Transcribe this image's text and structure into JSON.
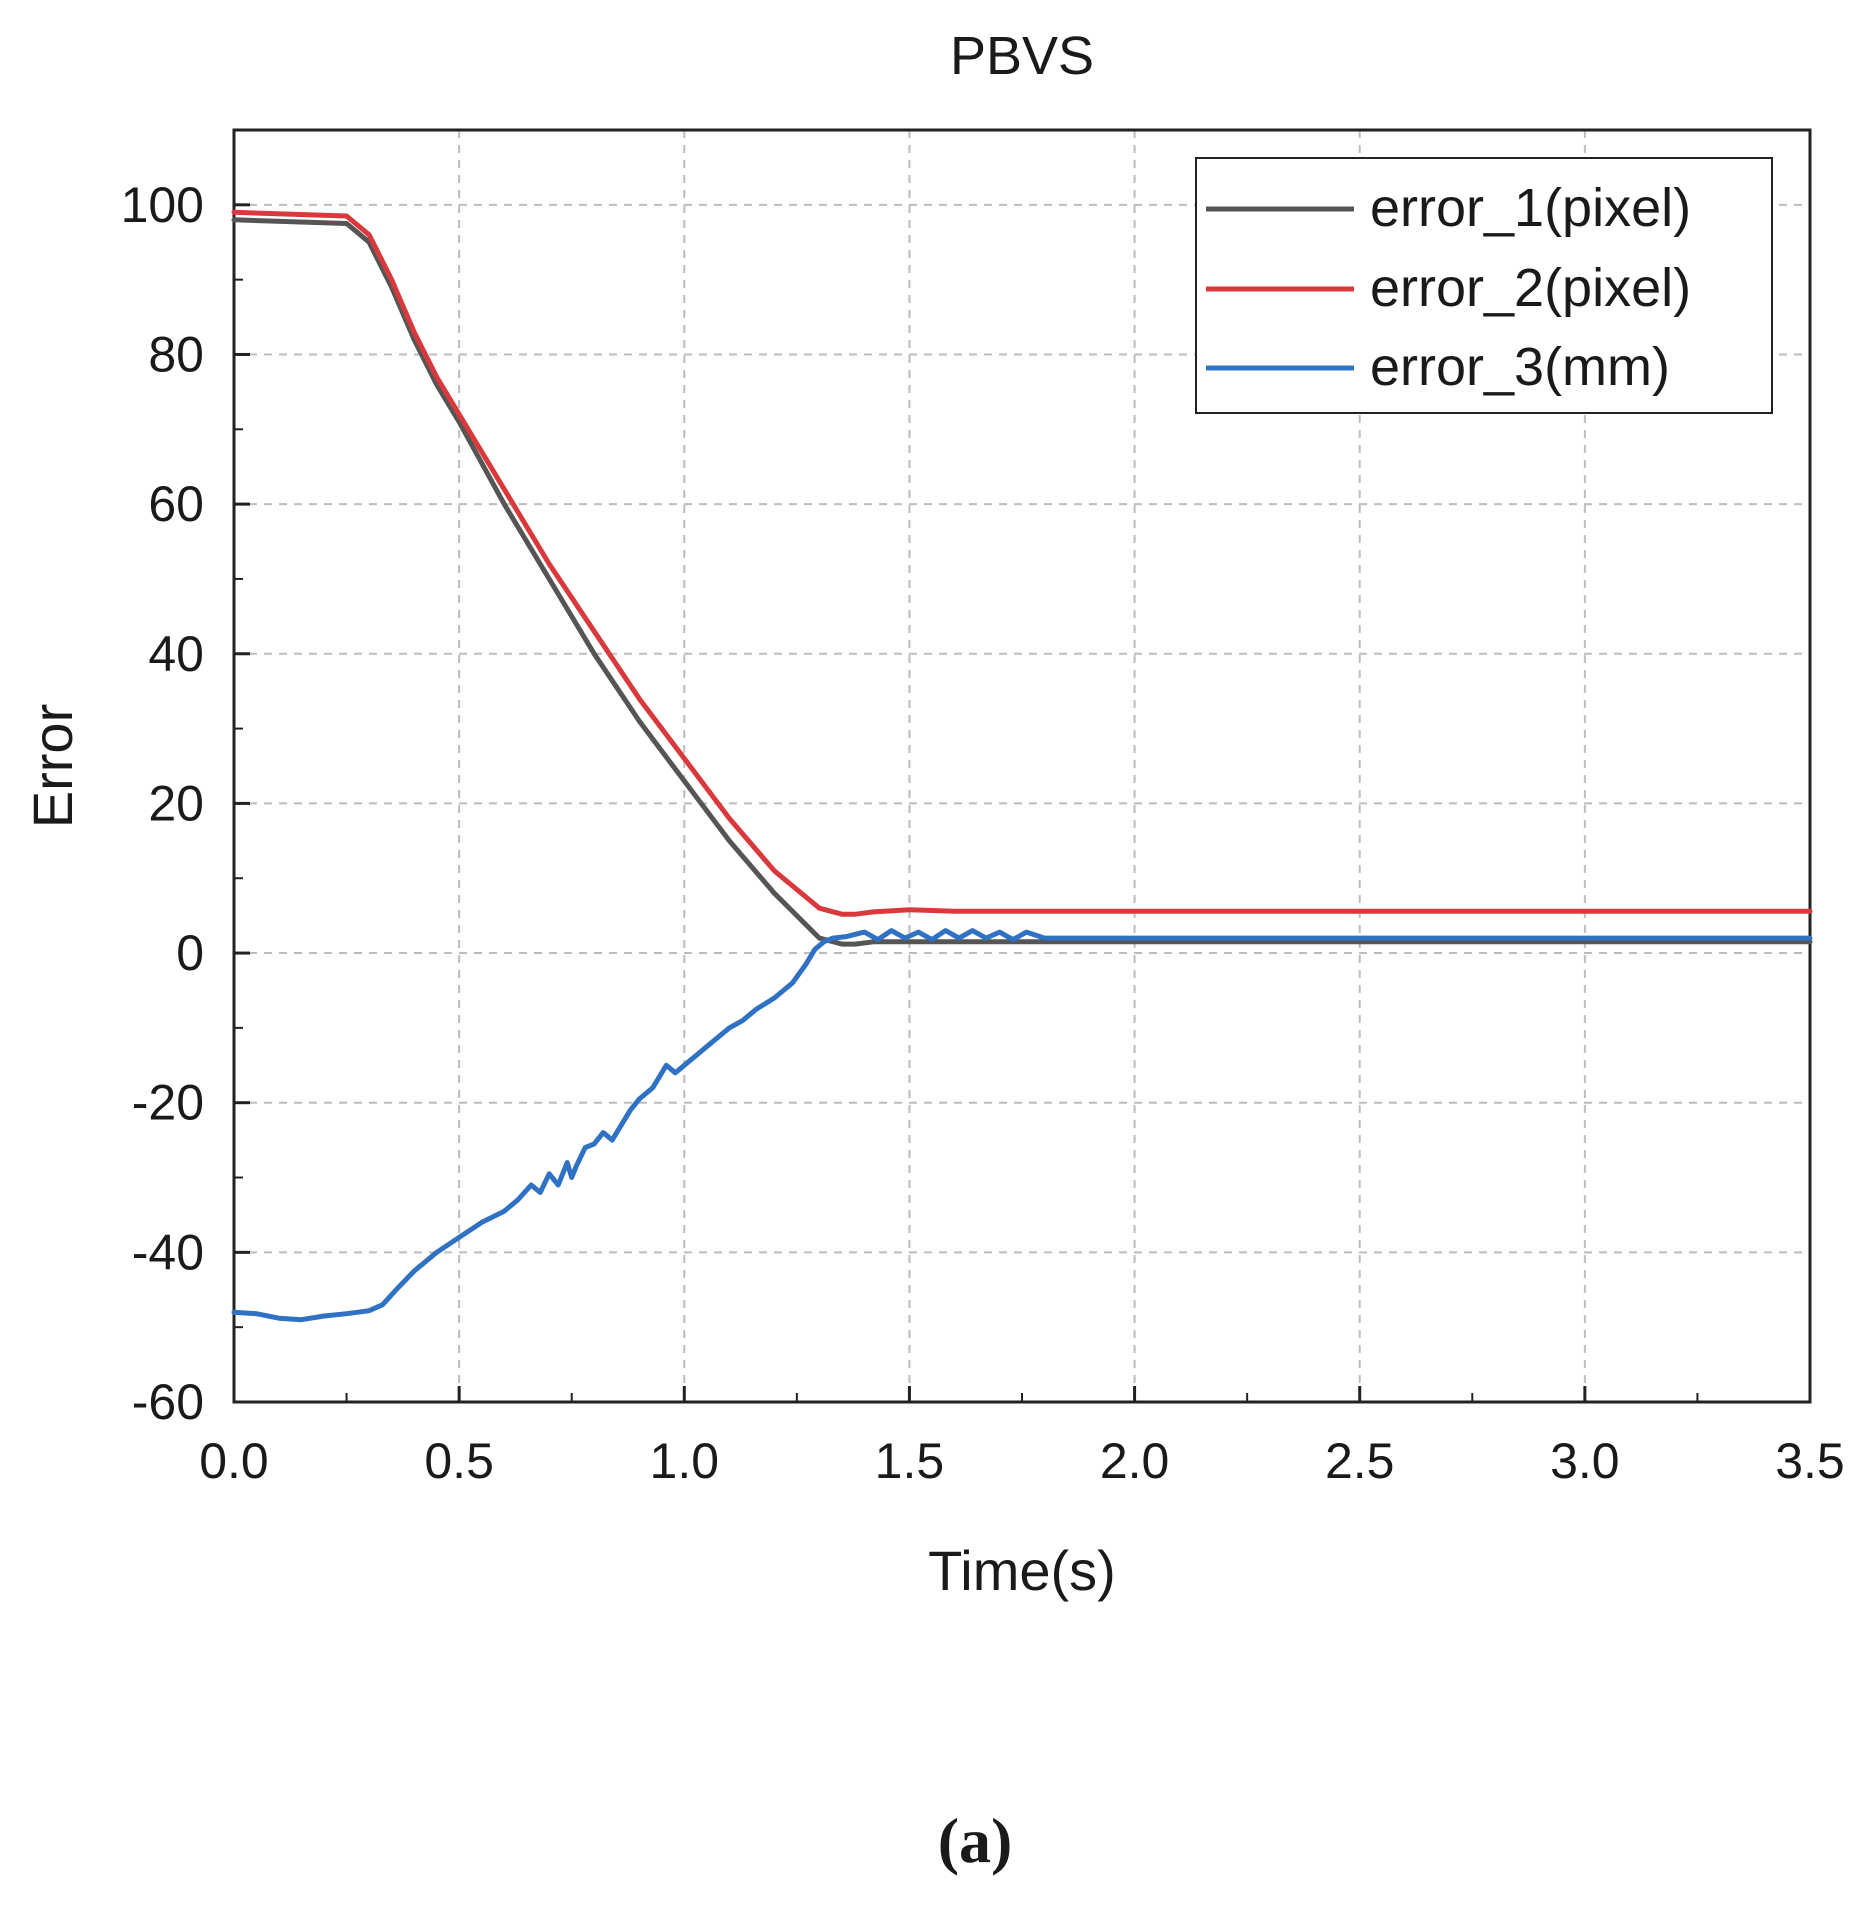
{
  "chart_data": {
    "type": "line",
    "title": "PBVS",
    "xlabel": "Time(s)",
    "ylabel": "Error",
    "xlim": [
      0,
      3.5
    ],
    "ylim": [
      -60,
      110
    ],
    "xticks": [
      "0.0",
      "0.5",
      "1.0",
      "1.5",
      "2.0",
      "2.5",
      "3.0",
      "3.5"
    ],
    "yticks": [
      "-60",
      "-40",
      "-20",
      "0",
      "20",
      "40",
      "60",
      "80",
      "100"
    ],
    "grid": true,
    "legend_position": "top-right",
    "caption": "(a)",
    "series": [
      {
        "name": "error_1(pixel)",
        "color": "#555555",
        "x": [
          0,
          0.25,
          0.3,
          0.35,
          0.4,
          0.45,
          0.5,
          0.6,
          0.7,
          0.8,
          0.9,
          1.0,
          1.1,
          1.2,
          1.3,
          1.35,
          1.38,
          1.42,
          1.5,
          2.0,
          2.5,
          3.0,
          3.5
        ],
        "y": [
          98,
          97.5,
          95,
          89,
          82,
          76,
          71,
          60,
          50,
          40,
          31,
          23,
          15,
          8,
          2,
          1.2,
          1.2,
          1.5,
          1.5,
          1.5,
          1.5,
          1.5,
          1.5
        ]
      },
      {
        "name": "error_2(pixel)",
        "color": "#d9393c",
        "x": [
          0,
          0.25,
          0.3,
          0.35,
          0.4,
          0.45,
          0.5,
          0.6,
          0.7,
          0.8,
          0.9,
          1.0,
          1.1,
          1.2,
          1.3,
          1.35,
          1.38,
          1.42,
          1.5,
          1.6,
          2.0,
          2.5,
          3.0,
          3.5
        ],
        "y": [
          99,
          98.5,
          96,
          90,
          83,
          77,
          72,
          62,
          52,
          43,
          34,
          26,
          18,
          11,
          6,
          5.2,
          5.2,
          5.5,
          5.8,
          5.6,
          5.6,
          5.6,
          5.6,
          5.6
        ]
      },
      {
        "name": "error_3(mm)",
        "color": "#2f72c4",
        "x": [
          0,
          0.05,
          0.1,
          0.15,
          0.2,
          0.25,
          0.3,
          0.33,
          0.36,
          0.4,
          0.45,
          0.5,
          0.55,
          0.6,
          0.63,
          0.66,
          0.68,
          0.7,
          0.72,
          0.74,
          0.75,
          0.76,
          0.78,
          0.8,
          0.82,
          0.84,
          0.86,
          0.88,
          0.9,
          0.93,
          0.96,
          0.98,
          1.0,
          1.03,
          1.06,
          1.1,
          1.13,
          1.16,
          1.2,
          1.24,
          1.27,
          1.29,
          1.31,
          1.33,
          1.36,
          1.4,
          1.43,
          1.46,
          1.49,
          1.52,
          1.55,
          1.58,
          1.61,
          1.64,
          1.67,
          1.7,
          1.73,
          1.76,
          1.8,
          2.0,
          2.5,
          3.0,
          3.5
        ],
        "y": [
          -48,
          -48.2,
          -48.8,
          -49,
          -48.5,
          -48.2,
          -47.8,
          -47,
          -45,
          -42.5,
          -40,
          -38,
          -36,
          -34.5,
          -33,
          -31,
          -32,
          -29.5,
          -31,
          -28,
          -30,
          -28.5,
          -26,
          -25.5,
          -24,
          -25,
          -23,
          -21,
          -19.5,
          -18,
          -15,
          -16,
          -15,
          -13.5,
          -12,
          -10,
          -9,
          -7.5,
          -6,
          -4,
          -1.5,
          0.5,
          1.5,
          2,
          2.2,
          2.8,
          1.8,
          3,
          2,
          2.8,
          1.8,
          3,
          2,
          3,
          2,
          2.8,
          1.8,
          2.8,
          2,
          2,
          2,
          2,
          2
        ]
      }
    ]
  }
}
